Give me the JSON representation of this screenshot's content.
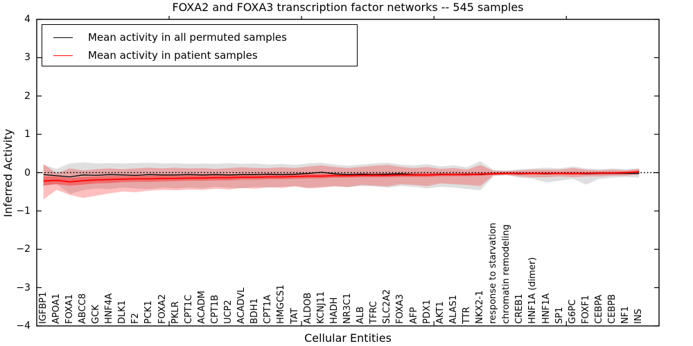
{
  "chart_data": {
    "type": "line",
    "title": "FOXA2 and FOXA3 transcription factor networks -- 545 samples",
    "xlabel": "Cellular Entities",
    "ylabel": "Inferred Activity",
    "ylim": [
      -4,
      4
    ],
    "yticks": [
      -4,
      -3,
      -2,
      -1,
      0,
      1,
      2,
      3,
      4
    ],
    "xlim": [
      0,
      47
    ],
    "top_ticks_at": [
      10,
      20,
      30,
      40
    ],
    "grid": false,
    "legend_position": "upper left",
    "reference_line": {
      "y": 0,
      "style": "dotted",
      "color": "#000000"
    },
    "categories": [
      "IGFBP1",
      "APOA1",
      "FOXA1",
      "ABCC8",
      "GCK",
      "HNF4A",
      "DLK1",
      "F2",
      "PCK1",
      "FOXA2",
      "PKLR",
      "CPT1C",
      "ACADM",
      "CPT1B",
      "UCP2",
      "ACADVL",
      "BDH1",
      "CPT1A",
      "HMGCS1",
      "TAT",
      "ALDOB",
      "KCNJ11",
      "HADH",
      "NR3C1",
      "ALB",
      "TFRC",
      "SLC2A2",
      "FOXA3",
      "AFP",
      "PDX1",
      "AKT1",
      "ALAS1",
      "TTR",
      "NKX2-1",
      "response to starvation",
      "chromatin remodeling",
      "CREB1",
      "HNF1A (dimer)",
      "HNF1A",
      "SP1",
      "G6PC",
      "FOXF1",
      "CEBPA",
      "CEBPB",
      "NF1",
      "INS"
    ],
    "series": [
      {
        "name": "Mean activity in all permuted samples",
        "color": "#000000",
        "line_width": 1.3,
        "values": [
          -0.05,
          -0.08,
          -0.11,
          -0.06,
          -0.07,
          -0.05,
          -0.06,
          -0.07,
          -0.05,
          -0.06,
          -0.06,
          -0.05,
          -0.06,
          -0.05,
          -0.06,
          -0.05,
          -0.05,
          -0.04,
          -0.05,
          -0.04,
          -0.02,
          0.01,
          -0.03,
          -0.05,
          -0.04,
          -0.05,
          -0.04,
          -0.03,
          -0.05,
          -0.06,
          -0.04,
          -0.05,
          -0.04,
          -0.05,
          -0.03,
          -0.02,
          -0.03,
          -0.02,
          -0.03,
          -0.02,
          -0.02,
          -0.03,
          -0.02,
          -0.02,
          -0.02,
          -0.02
        ]
      },
      {
        "name": "Mean activity in patient samples",
        "color": "#ff0000",
        "line_width": 1.8,
        "values": [
          -0.22,
          -0.2,
          -0.24,
          -0.21,
          -0.19,
          -0.18,
          -0.17,
          -0.16,
          -0.16,
          -0.15,
          -0.15,
          -0.14,
          -0.14,
          -0.13,
          -0.13,
          -0.12,
          -0.12,
          -0.11,
          -0.11,
          -0.1,
          -0.09,
          -0.09,
          -0.08,
          -0.08,
          -0.07,
          -0.07,
          -0.07,
          -0.06,
          -0.06,
          -0.06,
          -0.05,
          -0.05,
          -0.05,
          -0.04,
          -0.03,
          -0.02,
          -0.02,
          -0.02,
          -0.02,
          -0.02,
          -0.02,
          -0.02,
          -0.01,
          -0.01,
          0.0,
          0.02
        ]
      }
    ],
    "bands": [
      {
        "name": "permuted-samples-band",
        "color": "#8c8c8c",
        "opacity": 0.28,
        "hi": [
          0.2,
          0.1,
          0.24,
          0.27,
          0.24,
          0.25,
          0.24,
          0.25,
          0.26,
          0.24,
          0.25,
          0.23,
          0.24,
          0.23,
          0.25,
          0.23,
          0.24,
          0.21,
          0.23,
          0.2,
          0.24,
          0.26,
          0.21,
          0.18,
          0.21,
          0.24,
          0.26,
          0.21,
          0.19,
          0.22,
          0.16,
          0.19,
          0.14,
          0.3,
          0.07,
          0.06,
          0.09,
          0.11,
          0.13,
          0.11,
          0.16,
          0.11,
          0.09,
          0.11,
          0.09,
          0.11
        ],
        "lo": [
          -0.33,
          -0.3,
          -0.55,
          -0.46,
          -0.41,
          -0.43,
          -0.39,
          -0.41,
          -0.43,
          -0.39,
          -0.41,
          -0.39,
          -0.41,
          -0.37,
          -0.39,
          -0.41,
          -0.37,
          -0.39,
          -0.37,
          -0.35,
          -0.39,
          -0.37,
          -0.35,
          -0.37,
          -0.35,
          -0.36,
          -0.39,
          -0.35,
          -0.37,
          -0.41,
          -0.37,
          -0.39,
          -0.43,
          -0.46,
          -0.09,
          -0.07,
          -0.13,
          -0.16,
          -0.26,
          -0.21,
          -0.16,
          -0.31,
          -0.16,
          -0.13,
          -0.11,
          -0.13
        ]
      },
      {
        "name": "patient-samples-band-outer",
        "color": "#ff0000",
        "opacity": 0.25,
        "hi": [
          0.23,
          -0.02,
          0.11,
          0.06,
          0.09,
          0.11,
          0.09,
          0.11,
          0.13,
          0.11,
          0.13,
          0.11,
          0.12,
          0.1,
          0.12,
          0.14,
          0.12,
          0.12,
          0.14,
          0.12,
          0.16,
          0.19,
          0.15,
          0.12,
          0.15,
          0.18,
          0.2,
          0.15,
          0.12,
          0.15,
          0.1,
          0.12,
          0.08,
          0.2,
          0.05,
          0.04,
          0.06,
          0.08,
          0.08,
          0.08,
          0.12,
          0.08,
          0.06,
          0.08,
          0.06,
          0.1
        ],
        "lo": [
          -0.7,
          -0.45,
          -0.58,
          -0.66,
          -0.6,
          -0.54,
          -0.49,
          -0.51,
          -0.47,
          -0.45,
          -0.46,
          -0.44,
          -0.45,
          -0.42,
          -0.44,
          -0.4,
          -0.42,
          -0.38,
          -0.4,
          -0.36,
          -0.41,
          -0.39,
          -0.36,
          -0.38,
          -0.32,
          -0.34,
          -0.36,
          -0.3,
          -0.32,
          -0.35,
          -0.28,
          -0.3,
          -0.32,
          -0.35,
          -0.07,
          -0.06,
          -0.1,
          -0.12,
          -0.12,
          -0.1,
          -0.12,
          -0.1,
          -0.1,
          -0.08,
          -0.08,
          -0.05
        ]
      }
    ],
    "patient_inner_halfwidth": [
      0.12,
      0.1,
      0.1,
      0.1,
      0.09,
      0.09,
      0.08,
      0.08,
      0.08,
      0.08,
      0.07,
      0.07,
      0.07,
      0.07,
      0.07,
      0.06,
      0.06,
      0.06,
      0.06,
      0.06,
      0.06,
      0.06,
      0.05,
      0.05,
      0.05,
      0.05,
      0.05,
      0.05,
      0.05,
      0.05,
      0.04,
      0.04,
      0.04,
      0.04,
      0.03,
      0.03,
      0.03,
      0.03,
      0.03,
      0.03,
      0.04,
      0.03,
      0.03,
      0.03,
      0.03,
      0.04
    ],
    "patient_inner_opacity": 0.35,
    "axis_color": "#000000",
    "background_color": "#ffffff"
  }
}
